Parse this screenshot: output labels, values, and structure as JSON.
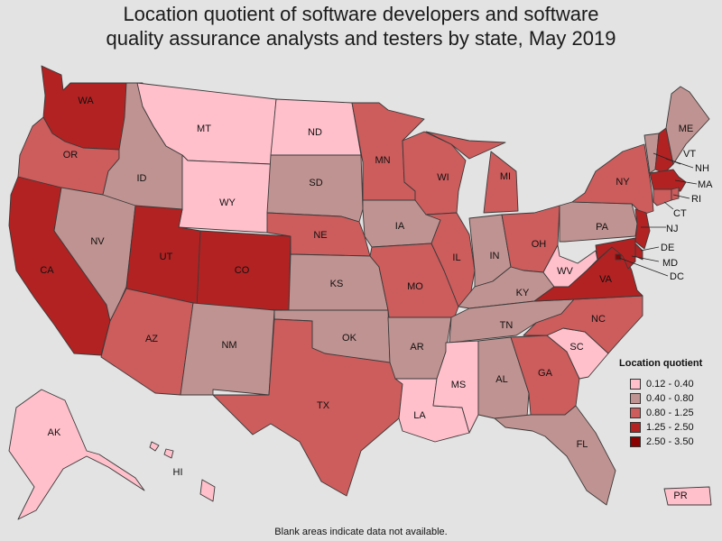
{
  "title": {
    "line1": "Location quotient of software developers and software",
    "line2": "quality assurance analysts and testers by state, May 2019"
  },
  "legend": {
    "title": "Location quotient",
    "items": [
      {
        "label": "0.12 - 0.40",
        "color": "#ffc0cb"
      },
      {
        "label": "0.40 - 0.80",
        "color": "#bf9391"
      },
      {
        "label": "0.80 - 1.25",
        "color": "#cd5c5c"
      },
      {
        "label": "1.25 - 2.50",
        "color": "#b22222"
      },
      {
        "label": "2.50 - 3.50",
        "color": "#8b0000"
      }
    ]
  },
  "footnote": "Blank areas indicate data not available.",
  "states": {
    "WA": {
      "label": "WA",
      "class": 3
    },
    "OR": {
      "label": "OR",
      "class": 2
    },
    "CA": {
      "label": "CA",
      "class": 3
    },
    "ID": {
      "label": "ID",
      "class": 1
    },
    "NV": {
      "label": "NV",
      "class": 1
    },
    "MT": {
      "label": "MT",
      "class": 0
    },
    "WY": {
      "label": "WY",
      "class": 0
    },
    "UT": {
      "label": "UT",
      "class": 3
    },
    "CO": {
      "label": "CO",
      "class": 3
    },
    "AZ": {
      "label": "AZ",
      "class": 2
    },
    "NM": {
      "label": "NM",
      "class": 1
    },
    "ND": {
      "label": "ND",
      "class": 0
    },
    "SD": {
      "label": "SD",
      "class": 1
    },
    "NE": {
      "label": "NE",
      "class": 2
    },
    "KS": {
      "label": "KS",
      "class": 1
    },
    "OK": {
      "label": "OK",
      "class": 1
    },
    "TX": {
      "label": "TX",
      "class": 2
    },
    "MN": {
      "label": "MN",
      "class": 2
    },
    "IA": {
      "label": "IA",
      "class": 1
    },
    "MO": {
      "label": "MO",
      "class": 2
    },
    "AR": {
      "label": "AR",
      "class": 1
    },
    "LA": {
      "label": "LA",
      "class": 0
    },
    "WI": {
      "label": "WI",
      "class": 2
    },
    "IL": {
      "label": "IL",
      "class": 2
    },
    "MI": {
      "label": "MI",
      "class": 2
    },
    "IN": {
      "label": "IN",
      "class": 1
    },
    "OH": {
      "label": "OH",
      "class": 2
    },
    "KY": {
      "label": "KY",
      "class": 1
    },
    "TN": {
      "label": "TN",
      "class": 1
    },
    "MS": {
      "label": "MS",
      "class": 0
    },
    "AL": {
      "label": "AL",
      "class": 1
    },
    "GA": {
      "label": "GA",
      "class": 2
    },
    "FL": {
      "label": "FL",
      "class": 1
    },
    "SC": {
      "label": "SC",
      "class": 0
    },
    "NC": {
      "label": "NC",
      "class": 2
    },
    "VA": {
      "label": "VA",
      "class": 3
    },
    "WV": {
      "label": "WV",
      "class": 0
    },
    "PA": {
      "label": "PA",
      "class": 1
    },
    "NY": {
      "label": "NY",
      "class": 2
    },
    "VT": {
      "label": "VT",
      "class": 1
    },
    "NH": {
      "label": "NH",
      "class": 3
    },
    "ME": {
      "label": "ME",
      "class": 1
    },
    "MA": {
      "label": "MA",
      "class": 3
    },
    "RI": {
      "label": "RI",
      "class": 2
    },
    "CT": {
      "label": "CT",
      "class": 2
    },
    "NJ": {
      "label": "NJ",
      "class": 3
    },
    "DE": {
      "label": "DE",
      "class": 3
    },
    "MD": {
      "label": "MD",
      "class": 3
    },
    "DC": {
      "label": "DC",
      "class": 4
    },
    "AK": {
      "label": "AK",
      "class": 0
    },
    "HI": {
      "label": "HI",
      "class": 0
    },
    "PR": {
      "label": "PR",
      "class": 0
    }
  }
}
